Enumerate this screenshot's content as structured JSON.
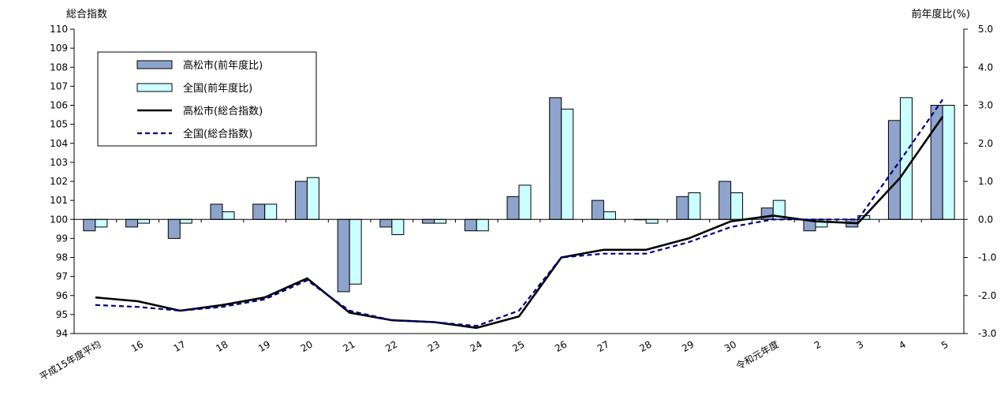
{
  "chart_data": {
    "type": "bar",
    "left_axis_label": "総合指数",
    "right_axis_label": "前年度比(%)",
    "categories": [
      "平成15年度平均",
      "16",
      "17",
      "18",
      "19",
      "20",
      "21",
      "22",
      "23",
      "24",
      "25",
      "26",
      "27",
      "28",
      "29",
      "30",
      "令和元年度",
      "2",
      "3",
      "4",
      "5"
    ],
    "left_axis": {
      "min": 94,
      "max": 110,
      "step": 1
    },
    "right_axis": {
      "min": -3.0,
      "max": 5.0,
      "step": 1.0
    },
    "left_ticks": [
      "94",
      "95",
      "96",
      "97",
      "98",
      "99",
      "100",
      "101",
      "102",
      "103",
      "104",
      "105",
      "106",
      "107",
      "108",
      "109",
      "110"
    ],
    "right_ticks": [
      "-3.0",
      "-2.0",
      "-1.0",
      "0.0",
      "1.0",
      "2.0",
      "3.0",
      "4.0",
      "5.0"
    ],
    "series": [
      {
        "name": "高松市(前年度比)",
        "kind": "bar",
        "axis": "right",
        "color": "#8ea4cc",
        "values": [
          -0.3,
          -0.2,
          -0.5,
          0.4,
          0.4,
          1.0,
          -1.9,
          -0.2,
          -0.1,
          -0.3,
          0.6,
          3.2,
          0.5,
          0.0,
          0.6,
          1.0,
          0.3,
          -0.3,
          -0.2,
          2.6,
          3.0
        ]
      },
      {
        "name": "全国(前年度比)",
        "kind": "bar",
        "axis": "right",
        "color": "#ccffff",
        "values": [
          -0.2,
          -0.1,
          -0.1,
          0.2,
          0.4,
          1.1,
          -1.7,
          -0.4,
          -0.1,
          -0.3,
          0.9,
          2.9,
          0.2,
          -0.1,
          0.7,
          0.7,
          0.5,
          -0.2,
          0.1,
          3.2,
          3.0
        ]
      },
      {
        "name": "高松市(総合指数)",
        "kind": "line",
        "axis": "left",
        "color": "#000000",
        "values": [
          95.9,
          95.7,
          95.2,
          95.5,
          95.9,
          96.9,
          95.1,
          94.7,
          94.6,
          94.3,
          94.9,
          98.0,
          98.4,
          98.4,
          99.0,
          99.9,
          100.2,
          99.9,
          99.8,
          102.2,
          105.4
        ]
      },
      {
        "name": "全国(総合指数)",
        "kind": "line",
        "axis": "left",
        "color": "#000080",
        "values": [
          95.5,
          95.4,
          95.2,
          95.4,
          95.8,
          96.8,
          95.2,
          94.7,
          94.6,
          94.4,
          95.2,
          98.0,
          98.2,
          98.2,
          98.8,
          99.6,
          100.0,
          100.0,
          100.0,
          103.1,
          106.3
        ]
      }
    ],
    "legend_position": "top-left"
  }
}
